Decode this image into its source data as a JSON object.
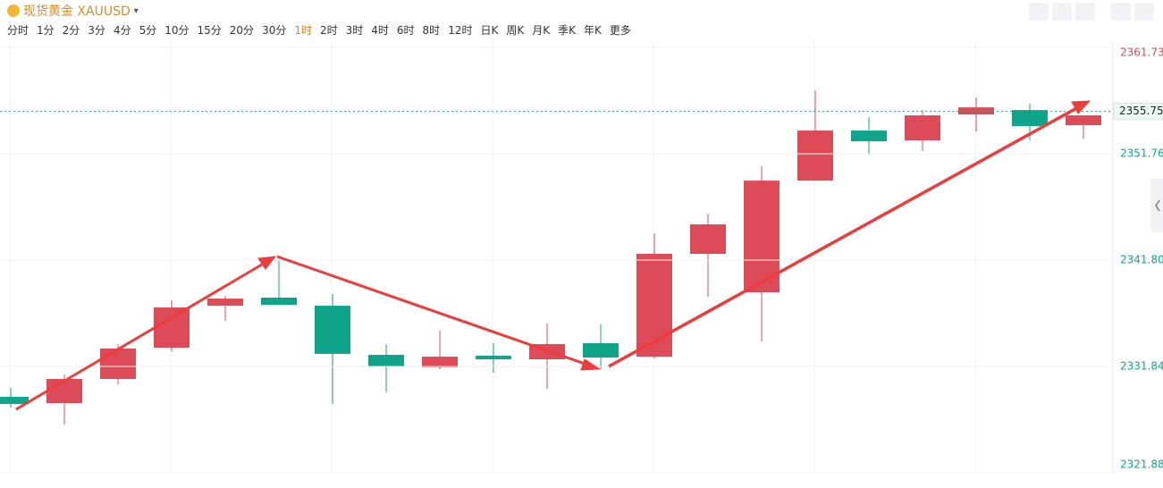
{
  "toolbar": {
    "symbol": "现货黄金 XAUUSD",
    "periods": [
      "分时",
      "1分",
      "2分",
      "3分",
      "4分",
      "5分",
      "10分",
      "15分",
      "20分",
      "30分",
      "1时",
      "2时",
      "3时",
      "4时",
      "6时",
      "8时",
      "12时",
      "日K",
      "周K",
      "月K",
      "季K",
      "年K",
      "更多"
    ],
    "active_period": 10
  },
  "chart_data": {
    "type": "candlestick",
    "open": [
      2329.0,
      2328.41,
      2330.67,
      2333.6,
      2337.53,
      2338.29,
      2337.53,
      2332.93,
      2331.76,
      2332.85,
      2332.51,
      2334.02,
      2332.76,
      2342.39,
      2338.79,
      2349.25,
      2353.94,
      2353.02,
      2355.44,
      2355.86,
      2354.44
    ],
    "high": [
      2329.84,
      2331.09,
      2333.94,
      2338.04,
      2338.45,
      2341.89,
      2338.62,
      2333.94,
      2335.19,
      2334.02,
      2335.86,
      2335.78,
      2344.31,
      2346.15,
      2350.59,
      2357.7,
      2355.19,
      2355.86,
      2357.03,
      2356.45,
      2355.36
    ],
    "low": [
      2327.99,
      2326.4,
      2330.17,
      2333.27,
      2336.11,
      2337.62,
      2328.33,
      2329.42,
      2331.59,
      2331.26,
      2329.75,
      2331.59,
      2332.6,
      2338.37,
      2334.19,
      2349.25,
      2351.68,
      2352.01,
      2353.85,
      2353.02,
      2353.18
    ],
    "close": [
      2328.33,
      2330.67,
      2333.52,
      2337.37,
      2338.2,
      2337.62,
      2333.02,
      2331.84,
      2332.76,
      2332.51,
      2333.94,
      2332.68,
      2342.39,
      2345.15,
      2349.25,
      2353.94,
      2352.93,
      2355.36,
      2356.11,
      2354.35,
      2355.36
    ],
    "up_color": "#dc4b57",
    "down_color": "#10a58a",
    "ylim": [
      2321.88,
      2361.73
    ],
    "yticks": [
      2321.88,
      2331.84,
      {
        "value": 2341.8,
        "label": "2341.80"
      },
      2351.76,
      2361.73
    ],
    "last_price": 2355.75,
    "grid": true
  }
}
